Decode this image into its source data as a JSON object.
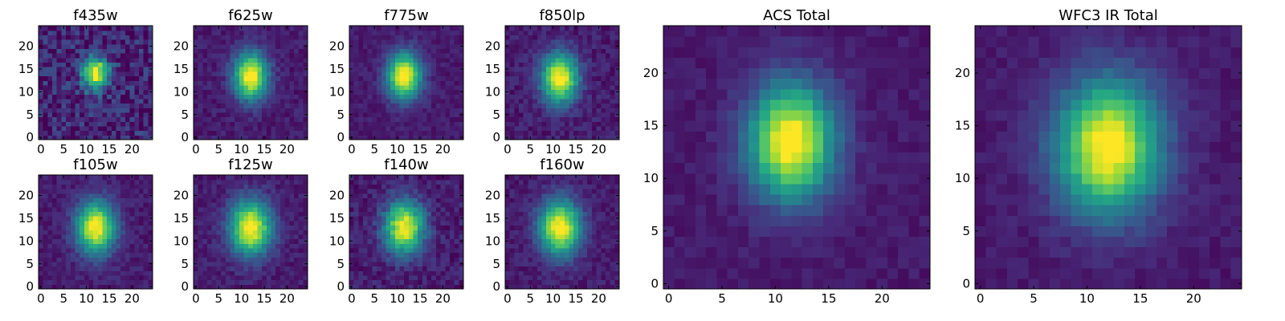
{
  "colormap": "viridis",
  "chart_data": [
    {
      "type": "heatmap",
      "title": "f435w",
      "grid": false,
      "image_size": 25,
      "xticks": [
        0,
        5,
        10,
        15,
        20
      ],
      "yticks": [
        0,
        5,
        10,
        15,
        20
      ],
      "source": {
        "cx": 12,
        "cy": 14,
        "sx": 2.0,
        "sy": 2.5,
        "peak": 0.92,
        "noise": 0.3
      }
    },
    {
      "type": "heatmap",
      "title": "f625w",
      "grid": false,
      "image_size": 25,
      "xticks": [
        0,
        5,
        10,
        15,
        20
      ],
      "yticks": [
        0,
        5,
        10,
        15,
        20
      ],
      "source": {
        "cx": 12,
        "cy": 13.5,
        "sx": 2.6,
        "sy": 3.6,
        "peak": 0.95,
        "noise": 0.12
      }
    },
    {
      "type": "heatmap",
      "title": "f775w",
      "grid": false,
      "image_size": 25,
      "xticks": [
        0,
        5,
        10,
        15,
        20
      ],
      "yticks": [
        0,
        5,
        10,
        15,
        20
      ],
      "source": {
        "cx": 11.5,
        "cy": 13.5,
        "sx": 2.6,
        "sy": 3.6,
        "peak": 0.95,
        "noise": 0.1
      }
    },
    {
      "type": "heatmap",
      "title": "f850lp",
      "grid": false,
      "image_size": 25,
      "xticks": [
        0,
        5,
        10,
        15,
        20
      ],
      "yticks": [
        0,
        5,
        10,
        15,
        20
      ],
      "source": {
        "cx": 11.5,
        "cy": 13,
        "sx": 2.8,
        "sy": 3.8,
        "peak": 0.95,
        "noise": 0.14
      }
    },
    {
      "type": "heatmap",
      "title": "f105w",
      "grid": false,
      "image_size": 25,
      "xticks": [
        0,
        5,
        10,
        15,
        20
      ],
      "yticks": [
        0,
        5,
        10,
        15,
        20
      ],
      "source": {
        "cx": 12,
        "cy": 13,
        "sx": 3.0,
        "sy": 4.0,
        "peak": 0.95,
        "noise": 0.12
      }
    },
    {
      "type": "heatmap",
      "title": "f125w",
      "grid": false,
      "image_size": 25,
      "xticks": [
        0,
        5,
        10,
        15,
        20
      ],
      "yticks": [
        0,
        5,
        10,
        15,
        20
      ],
      "source": {
        "cx": 12,
        "cy": 13,
        "sx": 3.2,
        "sy": 4.2,
        "peak": 0.95,
        "noise": 0.12
      }
    },
    {
      "type": "heatmap",
      "title": "f140w",
      "grid": false,
      "image_size": 25,
      "xticks": [
        0,
        5,
        10,
        15,
        20
      ],
      "yticks": [
        0,
        5,
        10,
        15,
        20
      ],
      "source": {
        "cx": 11.5,
        "cy": 13,
        "sx": 3.0,
        "sy": 4.0,
        "peak": 0.92,
        "noise": 0.16
      }
    },
    {
      "type": "heatmap",
      "title": "f160w",
      "grid": false,
      "image_size": 25,
      "xticks": [
        0,
        5,
        10,
        15,
        20
      ],
      "yticks": [
        0,
        5,
        10,
        15,
        20
      ],
      "source": {
        "cx": 11.5,
        "cy": 13,
        "sx": 3.2,
        "sy": 4.2,
        "peak": 0.95,
        "noise": 0.12
      }
    },
    {
      "type": "heatmap",
      "title": "ACS Total",
      "grid": false,
      "image_size": 25,
      "xticks": [
        0,
        5,
        10,
        15,
        20
      ],
      "yticks": [
        0,
        5,
        10,
        15,
        20
      ],
      "source": {
        "cx": 11.5,
        "cy": 13.5,
        "sx": 2.8,
        "sy": 3.8,
        "peak": 0.98,
        "noise": 0.08
      }
    },
    {
      "type": "heatmap",
      "title": "WFC3 IR Total",
      "grid": false,
      "image_size": 25,
      "xticks": [
        0,
        5,
        10,
        15,
        20
      ],
      "yticks": [
        0,
        5,
        10,
        15,
        20
      ],
      "source": {
        "cx": 12,
        "cy": 13,
        "sx": 3.4,
        "sy": 4.4,
        "peak": 0.98,
        "noise": 0.08
      }
    }
  ]
}
